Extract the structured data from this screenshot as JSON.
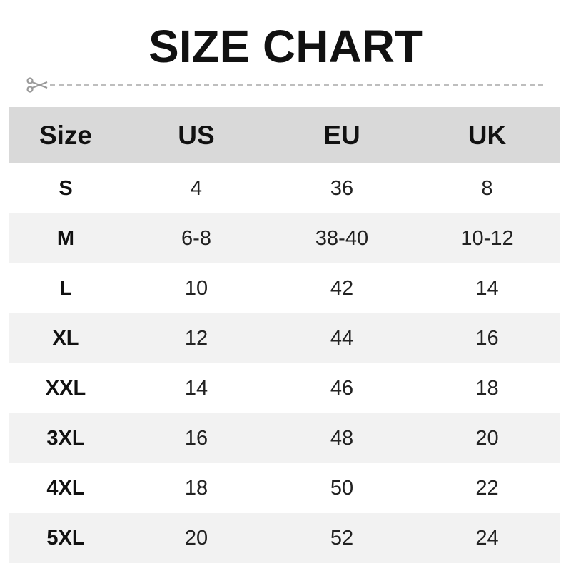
{
  "title": "SIZE CHART",
  "icons": {
    "cut": "scissors-icon"
  },
  "colors": {
    "header_bg": "#d9d9d9",
    "alt_row_bg": "#f2f2f2",
    "cutline": "#9a9a9a"
  },
  "chart_data": {
    "type": "table",
    "title": "SIZE CHART",
    "columns": [
      "Size",
      "US",
      "EU",
      "UK"
    ],
    "rows": [
      [
        "S",
        "4",
        "36",
        "8"
      ],
      [
        "M",
        "6-8",
        "38-40",
        "10-12"
      ],
      [
        "L",
        "10",
        "42",
        "14"
      ],
      [
        "XL",
        "12",
        "44",
        "16"
      ],
      [
        "XXL",
        "14",
        "46",
        "18"
      ],
      [
        "3XL",
        "16",
        "48",
        "20"
      ],
      [
        "4XL",
        "18",
        "50",
        "22"
      ],
      [
        "5XL",
        "20",
        "52",
        "24"
      ]
    ]
  }
}
